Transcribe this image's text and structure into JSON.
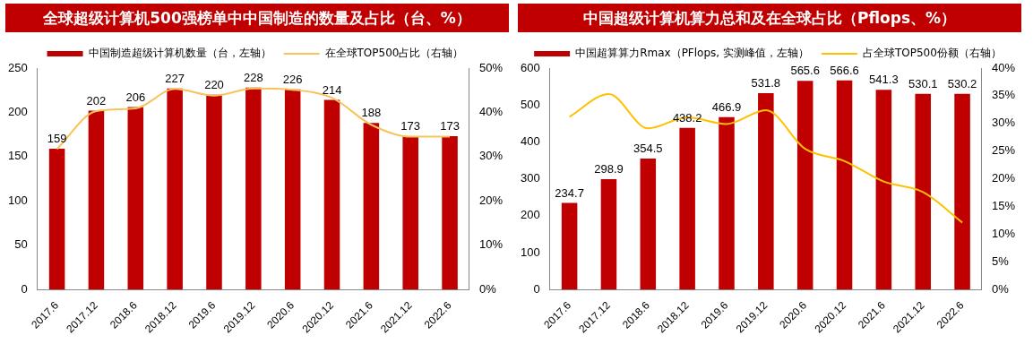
{
  "chart_data": [
    {
      "type": "bar",
      "title": "全球超级计算机500强榜单中中国制造的数量及占比（台、%）",
      "categories": [
        "2017.6",
        "2017.12",
        "2018.6",
        "2018.12",
        "2019.6",
        "2019.12",
        "2020.6",
        "2020.12",
        "2021.6",
        "2021.12",
        "2022.6"
      ],
      "series": [
        {
          "name": "中国制造超级计算机数量（台，左轴）",
          "color": "#c00000",
          "values": [
            159,
            202,
            206,
            227,
            220,
            228,
            226,
            214,
            188,
            173,
            173
          ],
          "value_labels": [
            "159",
            "202",
            "206",
            "227",
            "220",
            "228",
            "226",
            "214",
            "188",
            "173",
            "173"
          ]
        },
        {
          "name": "在全球TOP500占比（右轴）",
          "type": "line",
          "axis": "y2",
          "color": "#f8c35a",
          "values": [
            31.7,
            40.3,
            40.9,
            45.3,
            43.8,
            45.4,
            45.1,
            43.3,
            37.2,
            34.5,
            34.5
          ]
        }
      ],
      "ylim": [
        0,
        250
      ],
      "yticks": [
        0,
        50,
        100,
        150,
        200,
        250
      ],
      "y2lim": [
        0,
        50
      ],
      "y2ticks": [
        {
          "value": 0,
          "label": "0%"
        },
        {
          "value": 10,
          "label": "10%"
        },
        {
          "value": 20,
          "label": "20%"
        },
        {
          "value": 30,
          "label": "30%"
        },
        {
          "value": 40,
          "label": "40%"
        },
        {
          "value": 50,
          "label": "50%"
        }
      ],
      "grid": false,
      "legend": "top",
      "marker": "none",
      "line_style": "solid"
    },
    {
      "type": "bar",
      "title": "中国超级计算机算力总和及在全球占比（Pflops、%）",
      "categories": [
        "2017.6",
        "2017.12",
        "2018.6",
        "2018.12",
        "2019.6",
        "2019.12",
        "2020.6",
        "2020.12",
        "2021.6",
        "2021.12",
        "2022.6"
      ],
      "series": [
        {
          "name": "中国超算算力Rmax（PFlops, 实测峰值，左轴）",
          "color": "#c00000",
          "values": [
            234.7,
            298.9,
            354.5,
            438.2,
            466.9,
            531.8,
            565.6,
            566.6,
            541.3,
            530.1,
            530.2
          ],
          "value_labels": [
            "234.7",
            "298.9",
            "354.5",
            "438.2",
            "466.9",
            "531.8",
            "565.6",
            "566.6",
            "541.3",
            "530.1",
            "530.2"
          ]
        },
        {
          "name": "占全球TOP500份额（右轴）",
          "type": "line",
          "axis": "y2",
          "color": "#ffc000",
          "values": [
            31.2,
            35.3,
            29.1,
            31.1,
            29.9,
            32.4,
            25.4,
            23.2,
            19.5,
            17.6,
            12.1
          ]
        }
      ],
      "ylim": [
        0,
        600
      ],
      "yticks": [
        0,
        100,
        200,
        300,
        400,
        500,
        600
      ],
      "y2lim": [
        0,
        40
      ],
      "y2ticks": [
        {
          "value": 0,
          "label": "0%"
        },
        {
          "value": 5,
          "label": "5%"
        },
        {
          "value": 10,
          "label": "10%"
        },
        {
          "value": 15,
          "label": "15%"
        },
        {
          "value": 20,
          "label": "20%"
        },
        {
          "value": 25,
          "label": "25%"
        },
        {
          "value": 30,
          "label": "30%"
        },
        {
          "value": 35,
          "label": "35%"
        },
        {
          "value": 40,
          "label": "40%"
        }
      ],
      "grid": false,
      "legend": "top",
      "marker": "none",
      "line_style": "solid"
    }
  ]
}
